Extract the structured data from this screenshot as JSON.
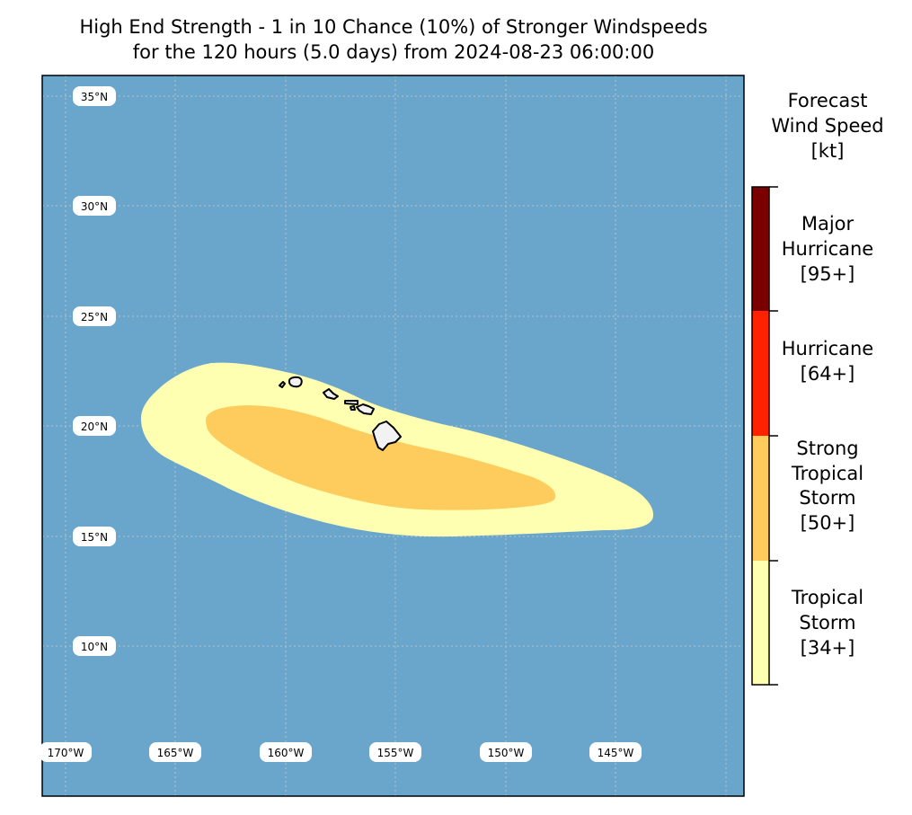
{
  "title": {
    "line1": "High End Strength - 1 in 10 Chance (10%) of Stronger Windspeeds",
    "line2": "for the 120 hours (5.0 days) from 2024-08-23 06:00:00"
  },
  "map": {
    "ocean_color": "#6aa6cc",
    "land_color": "#f2f2f2",
    "lat_labels": [
      "35°N",
      "30°N",
      "25°N",
      "20°N",
      "15°N",
      "10°N"
    ],
    "lon_labels": [
      "170°W",
      "165°W",
      "160°W",
      "155°W",
      "150°W",
      "145°W"
    ],
    "wind_zones": [
      {
        "name": "Tropical Storm",
        "threshold_kt": 34,
        "color": "#ffffb2"
      },
      {
        "name": "Strong Tropical Storm",
        "threshold_kt": 50,
        "color": "#fecc5c"
      }
    ]
  },
  "legend": {
    "title_lines": [
      "Forecast",
      "Wind Speed",
      "[kt]"
    ],
    "categories": [
      {
        "lines": [
          "Major",
          "Hurricane",
          "[95+]"
        ],
        "color": "#7a0000"
      },
      {
        "lines": [
          "Hurricane",
          "[64+]"
        ],
        "color": "#ff2200"
      },
      {
        "lines": [
          "Strong",
          "Tropical",
          "Storm",
          "[50+]"
        ],
        "color": "#fecc5c"
      },
      {
        "lines": [
          "Tropical",
          "Storm",
          "[34+]"
        ],
        "color": "#ffffb2"
      }
    ]
  }
}
